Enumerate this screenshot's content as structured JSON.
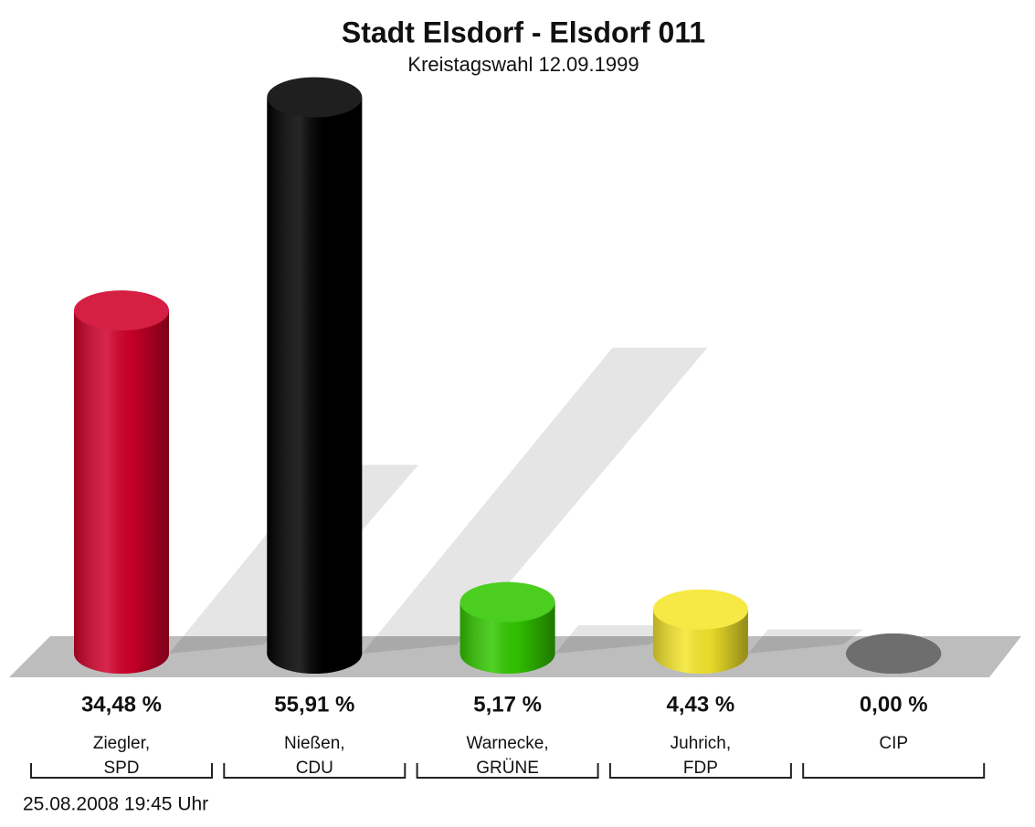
{
  "chart_data": {
    "type": "bar",
    "title": "Stadt Elsdorf - Elsdorf 011",
    "subtitle": "Kreistagswahl 12.09.1999",
    "categories": [
      [
        "Ziegler,",
        "SPD"
      ],
      [
        "Nießen,",
        "CDU"
      ],
      [
        "Warnecke,",
        "GRÜNE"
      ],
      [
        "Juhrich,",
        "FDP"
      ],
      [
        "CIP"
      ]
    ],
    "values": [
      34.48,
      55.91,
      5.17,
      4.43,
      0.0
    ],
    "value_labels": [
      "34,48 %",
      "55,91 %",
      "5,17 %",
      "4,43 %",
      "0,00 %"
    ],
    "colors": [
      "#d0002a",
      "#000000",
      "#33c800",
      "#f5e62c",
      "#5a5a5a"
    ],
    "footer": "25.08.2008 19:45 Uhr"
  }
}
